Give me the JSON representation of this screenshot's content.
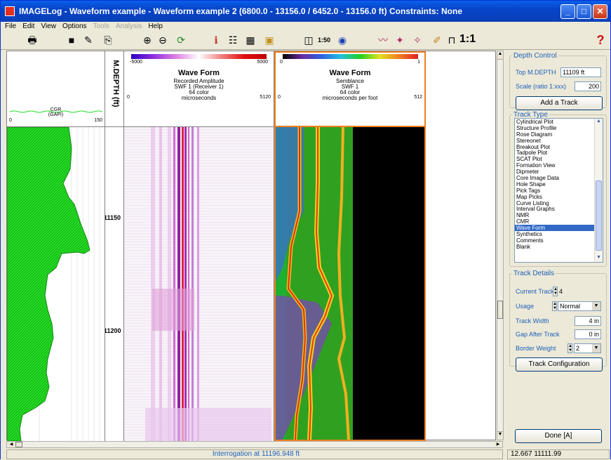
{
  "window": {
    "title": "IMAGELog - Waveform example - Waveform example 2 (6800.0 - 13156.0 / 6452.0 - 13156.0 ft) Constraints:  None",
    "accent": "#0a5fe8"
  },
  "menu": [
    "File",
    "Edit",
    "View",
    "Options",
    "Tools",
    "Analysis",
    "Help"
  ],
  "menu_disabled": [
    "Tools",
    "Analysis"
  ],
  "toolbar": {
    "scale_label": "1:50",
    "ratio_label": "1:1",
    "icons": [
      "print-icon",
      "save-icon",
      "edit-icon",
      "copy-icon",
      "zoom-in-icon",
      "zoom-out-icon",
      "refresh-icon",
      "info-tool-icon",
      "table-icon",
      "grid-icon",
      "image-icon",
      "track-icon",
      "scale-icon",
      "properties-icon",
      "waveform-icon",
      "toggle-icon",
      "annotate-icon",
      "curve-icon",
      "ratio-icon",
      "help-icon"
    ]
  },
  "tracks": {
    "cgr": {
      "name": "CGR",
      "unit": "(GAPI)",
      "min": "0",
      "max": "150",
      "color": "#22dd22"
    },
    "depth": {
      "label": "M.DEPTH (ft)",
      "ticks": [
        "11150",
        "11200"
      ]
    },
    "wave1": {
      "colorbar_min": "-5000",
      "colorbar_max": "5000",
      "title": "Wave Form",
      "sub1": "Recorded Amplitude",
      "sub2": "SWF 1 (Receiver 1)",
      "sub3": "64 color",
      "axis_min": "0",
      "axis_unit": "microseconds",
      "axis_max": "5120"
    },
    "wave2": {
      "colorbar_min": "0",
      "colorbar_max": "1",
      "title": "Wave Form",
      "sub1": "Semblance",
      "sub2": "SWF 1",
      "sub3": "64 color",
      "axis_min": "0",
      "axis_unit": "microseconds per foot",
      "axis_max": "512",
      "highlight": "#f08020"
    }
  },
  "status": {
    "interrogation": "Interrogation at 11196.948 ft",
    "coords": "12.667  11111.99"
  },
  "panel": {
    "depth_control": {
      "legend": "Depth Control",
      "top_label": "Top M.DEPTH",
      "top_value": "11109 ft",
      "scale_label": "Scale (ratio 1:xxx)",
      "scale_value": "200",
      "add_button": "Add a Track"
    },
    "track_type": {
      "legend": "Track Type",
      "items": [
        "Cylindrical Plot",
        "Structure Profile",
        "Rose Diagram",
        "Stereonet",
        "Breakout Plot",
        "Tadpole Plot",
        "SCAT Plot",
        "Formation View",
        "Dipmeter",
        "Core Image Data",
        "Hole Shape",
        "Pick Tags",
        "Map Picks",
        "Curve Listing",
        "Interval Graphs",
        "NMR",
        "CMR",
        "Wave Form",
        "Synthetics",
        "Comments",
        "Blank"
      ],
      "selected": "Wave Form"
    },
    "track_details": {
      "legend": "Track Details",
      "current_label": "Current Track",
      "current_value": "4",
      "usage_label": "Usage",
      "usage_value": "Normal",
      "width_label": "Track Width",
      "width_value": "4 in",
      "gap_label": "Gap After Track",
      "gap_value": "0 in",
      "border_label": "Border Weight",
      "border_value": "2",
      "config_button": "Track Configuration"
    },
    "done_button": "Done [A]"
  }
}
